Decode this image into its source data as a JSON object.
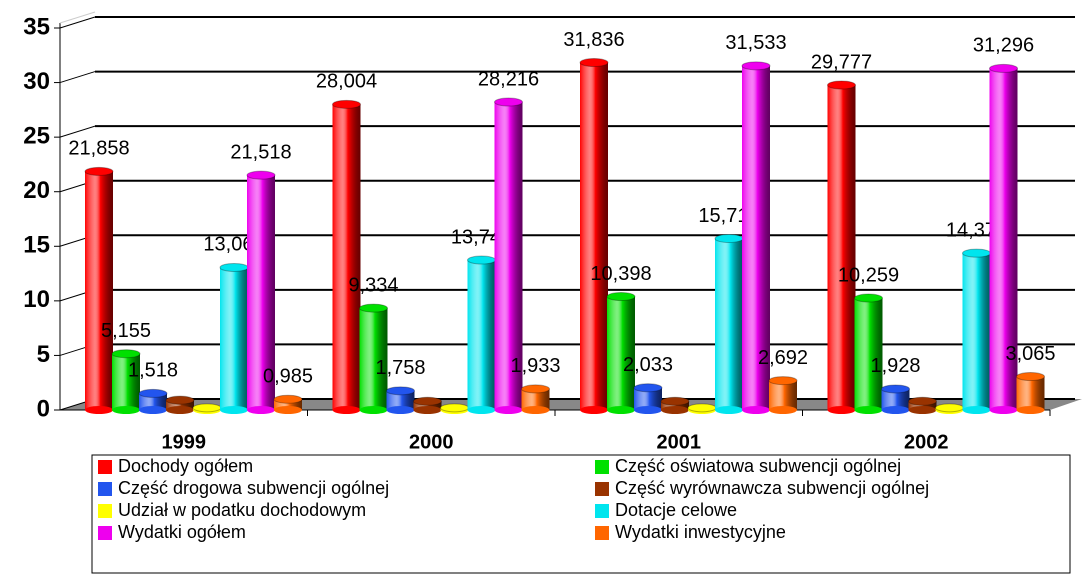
{
  "chart_data": {
    "type": "bar3d",
    "categories": [
      "1999",
      "2000",
      "2001",
      "2002"
    ],
    "series": [
      {
        "name": "Dochody ogółem",
        "color": "#ff0000",
        "values": [
          21.858,
          28.004,
          31.836,
          29.777
        ],
        "value_labels": [
          "21,858",
          "28,004",
          "31,836",
          "29,777"
        ]
      },
      {
        "name": "Część oświatowa subwencji ogólnej",
        "color": "#00e000",
        "values": [
          5.155,
          9.334,
          10.398,
          10.259
        ],
        "value_labels": [
          "5,155",
          "9,334",
          "10,398",
          "10,259"
        ]
      },
      {
        "name": "Część drogowa subwencji ogólnej",
        "color": "#2255ee",
        "values": [
          1.518,
          1.758,
          2.033,
          1.928
        ],
        "value_labels": [
          "1,518",
          "1,758",
          "2,033",
          "1,928"
        ]
      },
      {
        "name": "Część wyrównawcza subwencji ogólnej",
        "color": "#993300",
        "values": [
          0.9,
          0.8,
          0.8,
          0.8
        ]
      },
      {
        "name": "Udział w podatku dochodowym",
        "color": "#ffff00",
        "values": [
          0.2,
          0.2,
          0.2,
          0.2
        ]
      },
      {
        "name": "Dotacje celowe",
        "color": "#00e5ee",
        "values": [
          13.061,
          13.742,
          15.714,
          14.373
        ],
        "value_labels": [
          "13,061",
          "13,742",
          "15,714",
          "14,373"
        ]
      },
      {
        "name": "Wydatki ogółem",
        "color": "#ee00ee",
        "values": [
          21.518,
          28.216,
          31.533,
          31.296
        ],
        "value_labels": [
          "21,518",
          "28,216",
          "31,533",
          "31,296"
        ]
      },
      {
        "name": "Wydatki inwestycyjne",
        "color": "#ff6600",
        "values": [
          0.985,
          1.933,
          2.692,
          3.065
        ],
        "value_labels": [
          "0,985",
          "1,933",
          "2,692",
          "3,065"
        ]
      }
    ],
    "ylim": [
      0,
      35
    ],
    "yticks": [
      0,
      5,
      10,
      15,
      20,
      25,
      30,
      35
    ],
    "grid": true,
    "legend": "bottom"
  }
}
